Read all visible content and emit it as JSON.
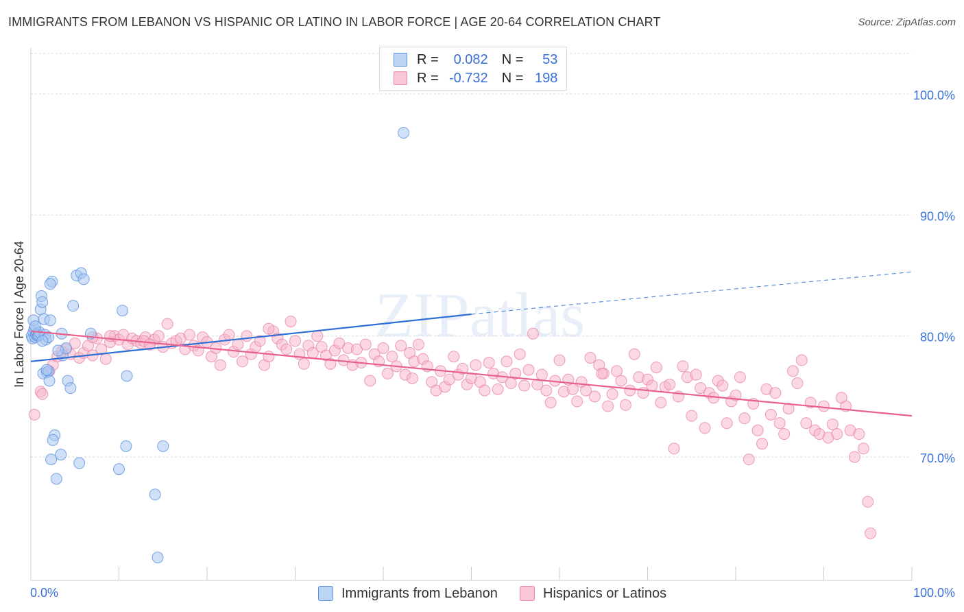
{
  "title": "IMMIGRANTS FROM LEBANON VS HISPANIC OR LATINO IN LABOR FORCE | AGE 20-64 CORRELATION CHART",
  "source": "Source: ZipAtlas.com",
  "watermark": "ZIPatlas",
  "legend": {
    "rows": [
      {
        "r_label": "R =",
        "r_value": "0.082",
        "n_label": "N =",
        "n_value": "53"
      },
      {
        "r_label": "R =",
        "r_value": "-0.732",
        "n_label": "N =",
        "n_value": "198"
      }
    ]
  },
  "bottom_legend": {
    "series1": "Immigrants from Lebanon",
    "series2": "Hispanics or Latinos"
  },
  "colors": {
    "blue_fill": "#a9c8f0",
    "blue_stroke": "#5b8ee0",
    "blue_line": "#2e6fd4",
    "pink_fill": "#f7b8cb",
    "pink_stroke": "#e886a6",
    "pink_line": "#e8608e",
    "axis_text": "#3a6fd8"
  },
  "chart_data": {
    "type": "scatter",
    "title": "IMMIGRANTS FROM LEBANON VS HISPANIC OR LATINO IN LABOR FORCE | AGE 20-64 CORRELATION CHART",
    "xlabel": "",
    "ylabel": "In Labor Force | Age 20-64",
    "x_tick_labels": [
      "0.0%",
      "100.0%"
    ],
    "y_tick_labels": [
      "100.0%",
      "90.0%",
      "80.0%",
      "70.0%"
    ],
    "y_ticks": [
      100,
      90,
      80,
      70
    ],
    "xlim": [
      0,
      100
    ],
    "ylim": [
      59.8,
      103.8
    ],
    "grid": true,
    "legend_position": "top-center",
    "series": [
      {
        "name": "Immigrants from Lebanon",
        "R": 0.082,
        "N": 53,
        "trend": {
          "x0": 0,
          "y0": 77.9,
          "x1": 50,
          "y1": 81.8,
          "x_dash_end": 100,
          "y_dash_end": 85.3
        },
        "points": [
          [
            0.1,
            80.0
          ],
          [
            0.2,
            79.8
          ],
          [
            0.3,
            80.3
          ],
          [
            0.4,
            80.6
          ],
          [
            0.5,
            79.9
          ],
          [
            0.6,
            80.1
          ],
          [
            0.7,
            80.2
          ],
          [
            0.8,
            80.0
          ],
          [
            0.9,
            80.1
          ],
          [
            1.0,
            80.3
          ],
          [
            0.3,
            81.3
          ],
          [
            0.5,
            80.8
          ],
          [
            1.1,
            82.2
          ],
          [
            1.2,
            83.3
          ],
          [
            1.3,
            82.8
          ],
          [
            1.5,
            81.4
          ],
          [
            1.6,
            80.1
          ],
          [
            1.7,
            79.7
          ],
          [
            2.0,
            79.9
          ],
          [
            2.2,
            81.3
          ],
          [
            1.8,
            77.0
          ],
          [
            1.4,
            76.9
          ],
          [
            2.0,
            77.1
          ],
          [
            2.1,
            76.3
          ],
          [
            2.4,
            84.5
          ],
          [
            2.2,
            84.3
          ],
          [
            2.7,
            71.8
          ],
          [
            2.5,
            71.4
          ],
          [
            1.8,
            77.2
          ],
          [
            3.5,
            80.2
          ],
          [
            3.6,
            78.4
          ],
          [
            3.4,
            70.2
          ],
          [
            2.9,
            68.2
          ],
          [
            2.3,
            69.8
          ],
          [
            4.2,
            76.3
          ],
          [
            4.5,
            75.7
          ],
          [
            4.8,
            82.5
          ],
          [
            5.2,
            85.0
          ],
          [
            5.7,
            85.2
          ],
          [
            6.0,
            84.7
          ],
          [
            6.8,
            80.2
          ],
          [
            10.0,
            69.0
          ],
          [
            10.4,
            82.1
          ],
          [
            10.8,
            70.9
          ],
          [
            10.9,
            76.7
          ],
          [
            14.1,
            66.9
          ],
          [
            14.4,
            61.7
          ],
          [
            15.0,
            70.9
          ],
          [
            42.3,
            96.8
          ],
          [
            4.0,
            79.0
          ],
          [
            1.3,
            79.6
          ],
          [
            5.5,
            69.5
          ],
          [
            3.1,
            78.8
          ]
        ]
      },
      {
        "name": "Hispanics or Latinos",
        "R": -0.732,
        "N": 198,
        "trend": {
          "x0": 0,
          "y0": 80.4,
          "x1": 100,
          "y1": 73.4
        },
        "points": [
          [
            0.4,
            73.5
          ],
          [
            1.1,
            75.4
          ],
          [
            1.3,
            75.2
          ],
          [
            2.1,
            77.1
          ],
          [
            2.5,
            77.6
          ],
          [
            3.0,
            78.3
          ],
          [
            3.5,
            78.7
          ],
          [
            4.0,
            78.9
          ],
          [
            4.5,
            78.5
          ],
          [
            5.0,
            79.4
          ],
          [
            5.5,
            78.2
          ],
          [
            6.0,
            78.6
          ],
          [
            6.5,
            79.2
          ],
          [
            7.0,
            78.4
          ],
          [
            7.5,
            79.8
          ],
          [
            8.0,
            78.9
          ],
          [
            8.5,
            78.1
          ],
          [
            9.0,
            79.5
          ],
          [
            9.5,
            80.0
          ],
          [
            10.0,
            79.7
          ],
          [
            10.5,
            80.1
          ],
          [
            11.0,
            79.3
          ],
          [
            11.5,
            79.8
          ],
          [
            12.0,
            79.6
          ],
          [
            12.5,
            79.4
          ],
          [
            13.0,
            79.9
          ],
          [
            13.5,
            79.3
          ],
          [
            14.0,
            79.7
          ],
          [
            14.5,
            80.0
          ],
          [
            15.0,
            79.1
          ],
          [
            15.5,
            81.0
          ],
          [
            16.0,
            79.4
          ],
          [
            16.5,
            79.6
          ],
          [
            17.0,
            79.8
          ],
          [
            17.5,
            78.9
          ],
          [
            18.0,
            80.1
          ],
          [
            18.5,
            79.2
          ],
          [
            19.0,
            78.8
          ],
          [
            19.5,
            79.9
          ],
          [
            20.0,
            79.5
          ],
          [
            20.5,
            78.3
          ],
          [
            21.0,
            79.0
          ],
          [
            21.5,
            77.6
          ],
          [
            22.0,
            79.7
          ],
          [
            22.5,
            80.1
          ],
          [
            23.0,
            78.7
          ],
          [
            23.5,
            79.3
          ],
          [
            24.0,
            77.9
          ],
          [
            24.5,
            80.0
          ],
          [
            25.0,
            78.5
          ],
          [
            25.5,
            79.1
          ],
          [
            26.0,
            79.6
          ],
          [
            26.5,
            77.6
          ],
          [
            27.0,
            78.3
          ],
          [
            27.5,
            80.4
          ],
          [
            28.0,
            79.8
          ],
          [
            28.5,
            79.3
          ],
          [
            29.0,
            78.9
          ],
          [
            29.5,
            81.2
          ],
          [
            30.0,
            79.6
          ],
          [
            30.5,
            78.5
          ],
          [
            31.0,
            77.7
          ],
          [
            31.5,
            79.2
          ],
          [
            32.0,
            78.6
          ],
          [
            32.5,
            80.0
          ],
          [
            33.0,
            79.1
          ],
          [
            33.5,
            78.4
          ],
          [
            34.0,
            77.7
          ],
          [
            34.5,
            78.8
          ],
          [
            35.0,
            79.4
          ],
          [
            35.5,
            78.0
          ],
          [
            36.0,
            79.0
          ],
          [
            36.5,
            77.6
          ],
          [
            37.0,
            78.9
          ],
          [
            37.5,
            77.8
          ],
          [
            38.0,
            79.3
          ],
          [
            38.5,
            76.3
          ],
          [
            39.0,
            78.5
          ],
          [
            39.5,
            77.9
          ],
          [
            40.0,
            79.0
          ],
          [
            40.5,
            76.9
          ],
          [
            41.0,
            78.3
          ],
          [
            41.5,
            77.5
          ],
          [
            42.0,
            79.2
          ],
          [
            42.5,
            76.8
          ],
          [
            43.0,
            78.6
          ],
          [
            43.5,
            77.9
          ],
          [
            44.0,
            79.3
          ],
          [
            44.5,
            78.1
          ],
          [
            45.0,
            77.5
          ],
          [
            45.5,
            76.2
          ],
          [
            46.0,
            75.5
          ],
          [
            46.5,
            77.1
          ],
          [
            47.0,
            75.8
          ],
          [
            47.5,
            76.4
          ],
          [
            48.0,
            78.3
          ],
          [
            48.5,
            76.8
          ],
          [
            49.0,
            77.3
          ],
          [
            49.5,
            76.0
          ],
          [
            50.0,
            76.5
          ],
          [
            50.5,
            77.6
          ],
          [
            51.0,
            76.2
          ],
          [
            51.5,
            75.5
          ],
          [
            52.0,
            77.8
          ],
          [
            52.5,
            76.9
          ],
          [
            53.0,
            75.6
          ],
          [
            53.5,
            76.6
          ],
          [
            54.0,
            77.9
          ],
          [
            54.5,
            76.1
          ],
          [
            55.0,
            76.9
          ],
          [
            55.5,
            78.5
          ],
          [
            56.0,
            75.9
          ],
          [
            56.5,
            77.2
          ],
          [
            57.0,
            80.2
          ],
          [
            57.5,
            76.0
          ],
          [
            58.0,
            76.8
          ],
          [
            58.5,
            75.5
          ],
          [
            59.0,
            74.5
          ],
          [
            59.5,
            76.3
          ],
          [
            60.0,
            78.0
          ],
          [
            60.5,
            75.4
          ],
          [
            61.0,
            76.4
          ],
          [
            61.5,
            75.6
          ],
          [
            62.0,
            74.6
          ],
          [
            62.5,
            76.2
          ],
          [
            63.0,
            75.5
          ],
          [
            63.5,
            78.2
          ],
          [
            64.0,
            75.0
          ],
          [
            64.5,
            77.6
          ],
          [
            65.0,
            76.9
          ],
          [
            65.5,
            74.2
          ],
          [
            66.0,
            75.2
          ],
          [
            66.5,
            77.1
          ],
          [
            67.0,
            76.3
          ],
          [
            67.5,
            74.3
          ],
          [
            68.0,
            75.5
          ],
          [
            68.5,
            78.5
          ],
          [
            69.0,
            76.6
          ],
          [
            69.5,
            75.3
          ],
          [
            70.0,
            76.4
          ],
          [
            70.5,
            75.9
          ],
          [
            71.0,
            77.4
          ],
          [
            71.5,
            74.5
          ],
          [
            72.0,
            75.8
          ],
          [
            72.5,
            76.0
          ],
          [
            73.0,
            70.7
          ],
          [
            73.5,
            75.0
          ],
          [
            74.0,
            77.5
          ],
          [
            74.5,
            76.6
          ],
          [
            75.0,
            73.4
          ],
          [
            75.5,
            76.8
          ],
          [
            76.0,
            75.7
          ],
          [
            76.5,
            72.4
          ],
          [
            77.0,
            75.3
          ],
          [
            77.5,
            74.9
          ],
          [
            78.0,
            76.3
          ],
          [
            78.5,
            75.9
          ],
          [
            79.0,
            72.8
          ],
          [
            79.5,
            74.6
          ],
          [
            80.0,
            75.1
          ],
          [
            80.5,
            76.6
          ],
          [
            81.0,
            73.2
          ],
          [
            81.5,
            69.8
          ],
          [
            82.0,
            74.4
          ],
          [
            82.5,
            72.2
          ],
          [
            83.0,
            71.1
          ],
          [
            83.5,
            75.6
          ],
          [
            84.0,
            73.5
          ],
          [
            84.5,
            75.3
          ],
          [
            85.0,
            72.8
          ],
          [
            85.5,
            71.9
          ],
          [
            86.0,
            74.0
          ],
          [
            86.5,
            77.1
          ],
          [
            87.0,
            76.1
          ],
          [
            87.5,
            78.0
          ],
          [
            88.0,
            72.8
          ],
          [
            88.5,
            74.5
          ],
          [
            89.0,
            72.2
          ],
          [
            89.5,
            71.9
          ],
          [
            90.0,
            74.2
          ],
          [
            90.5,
            71.6
          ],
          [
            91.0,
            72.7
          ],
          [
            91.5,
            71.9
          ],
          [
            92.0,
            74.9
          ],
          [
            92.5,
            74.2
          ],
          [
            93.0,
            72.2
          ],
          [
            93.5,
            70.0
          ],
          [
            94.0,
            71.9
          ],
          [
            94.5,
            70.7
          ],
          [
            95.0,
            66.3
          ],
          [
            95.3,
            63.7
          ],
          [
            64.8,
            76.9
          ],
          [
            43.3,
            76.5
          ],
          [
            27.0,
            80.6
          ],
          [
            12.8,
            79.6
          ],
          [
            7.0,
            79.9
          ],
          [
            9.0,
            80.0
          ],
          [
            13.5,
            79.3
          ]
        ]
      }
    ]
  }
}
